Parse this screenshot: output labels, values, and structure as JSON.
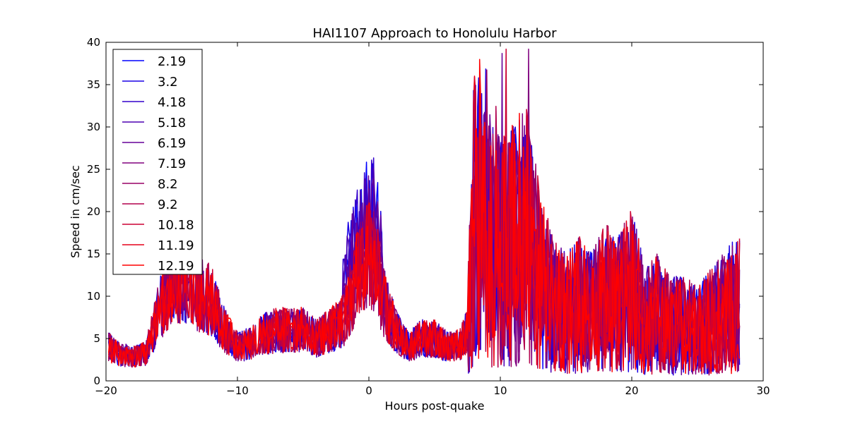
{
  "chart_data": {
    "type": "line",
    "title": "HAI1107   Approach to Honolulu Harbor",
    "xlabel": "Hours post-quake",
    "ylabel": "Speed in cm/sec",
    "xlim": [
      -20,
      30
    ],
    "ylim": [
      0,
      40
    ],
    "x_ticks": [
      -20,
      -10,
      0,
      10,
      20,
      30
    ],
    "y_ticks": [
      0,
      5,
      10,
      15,
      20,
      25,
      30,
      35,
      40
    ],
    "x_tick_labels": [
      "−20",
      "−10",
      "0",
      "10",
      "20",
      "30"
    ],
    "y_tick_labels": [
      "0",
      "5",
      "10",
      "15",
      "20",
      "25",
      "30",
      "35",
      "40"
    ],
    "grid": false,
    "legend_position": "top-left",
    "x_start": -19.8,
    "x_end": 28.2,
    "series": [
      {
        "name": "2.19",
        "color": "#0000ff"
      },
      {
        "name": "3.2",
        "color": "#1a00e5"
      },
      {
        "name": "4.18",
        "color": "#3300cc"
      },
      {
        "name": "5.18",
        "color": "#4d00b2"
      },
      {
        "name": "6.19",
        "color": "#660099"
      },
      {
        "name": "7.19",
        "color": "#80007f"
      },
      {
        "name": "8.2",
        "color": "#990066"
      },
      {
        "name": "9.2",
        "color": "#b2004d"
      },
      {
        "name": "10.18",
        "color": "#cc0033"
      },
      {
        "name": "11.19",
        "color": "#e5001a"
      },
      {
        "name": "12.19",
        "color": "#ff0000"
      }
    ],
    "envelope": [
      [
        -19.8,
        4
      ],
      [
        -19,
        3.2
      ],
      [
        -18,
        2.8
      ],
      [
        -17,
        3.2
      ],
      [
        -16.5,
        5.5
      ],
      [
        -16,
        8
      ],
      [
        -15,
        12
      ],
      [
        -14,
        12.5
      ],
      [
        -13,
        10.5
      ],
      [
        -12,
        9.5
      ],
      [
        -11,
        6
      ],
      [
        -10,
        4
      ],
      [
        -9,
        4.5
      ],
      [
        -8,
        5.5
      ],
      [
        -7,
        6
      ],
      [
        -6,
        6
      ],
      [
        -5,
        6
      ],
      [
        -4,
        5
      ],
      [
        -3,
        6
      ],
      [
        -2,
        7
      ],
      [
        -1,
        12
      ],
      [
        0,
        15
      ],
      [
        0.5,
        14
      ],
      [
        1,
        10
      ],
      [
        2,
        6
      ],
      [
        3,
        4
      ],
      [
        4,
        5
      ],
      [
        5,
        5
      ],
      [
        6,
        4
      ],
      [
        7,
        4.5
      ],
      [
        7.5,
        6
      ],
      [
        8,
        20
      ],
      [
        9,
        17
      ],
      [
        10,
        15
      ],
      [
        11,
        16
      ],
      [
        12,
        17
      ],
      [
        13,
        12
      ],
      [
        14,
        9
      ],
      [
        15,
        8
      ],
      [
        16,
        9
      ],
      [
        17,
        8
      ],
      [
        18,
        10
      ],
      [
        19,
        9
      ],
      [
        20,
        11
      ],
      [
        21,
        7
      ],
      [
        22,
        8
      ],
      [
        23,
        6.5
      ],
      [
        24,
        6.5
      ],
      [
        25,
        6
      ],
      [
        26,
        7
      ],
      [
        27,
        8
      ],
      [
        28,
        9
      ]
    ]
  }
}
